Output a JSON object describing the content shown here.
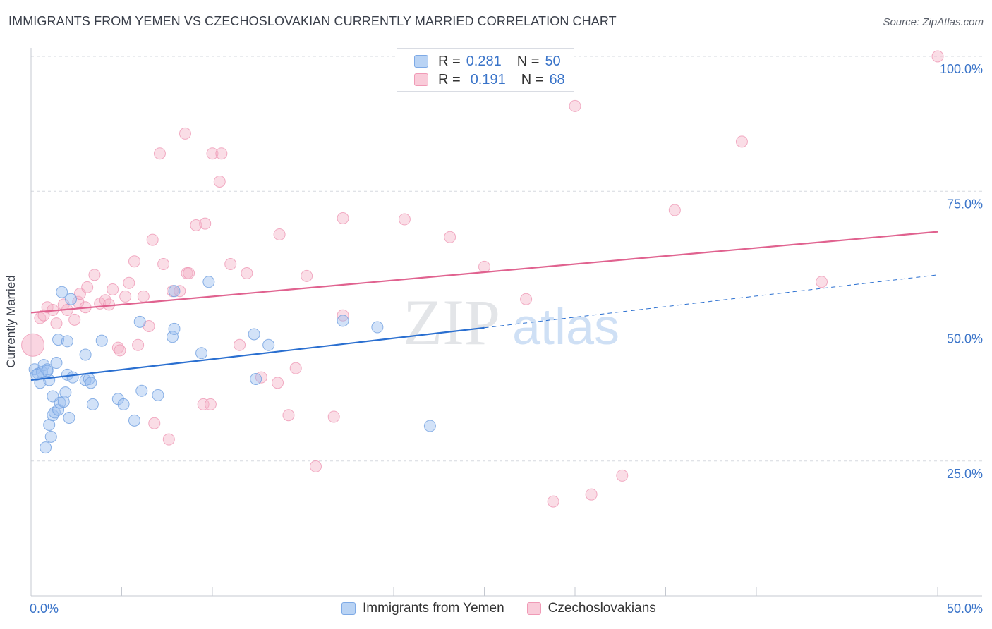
{
  "header": {
    "title": "IMMIGRANTS FROM YEMEN VS CZECHOSLOVAKIAN CURRENTLY MARRIED CORRELATION CHART",
    "source": "Source: ZipAtlas.com"
  },
  "legend": {
    "rows": [
      {
        "r_label": "R =",
        "r_value": "0.281",
        "n_label": "N =",
        "n_value": "50",
        "color": "#9bbfef"
      },
      {
        "r_label": "R =",
        "r_value": "0.191",
        "n_label": "N =",
        "n_value": "68",
        "color": "#f5b3c8"
      }
    ]
  },
  "bottom_legend": {
    "series_a": "Immigrants from Yemen",
    "series_b": "Czechoslovakians"
  },
  "watermark": {
    "zip": "ZIP",
    "atlas": "atlas"
  },
  "chart_data": {
    "type": "scatter",
    "title": "IMMIGRANTS FROM YEMEN VS CZECHOSLOVAKIAN CURRENTLY MARRIED CORRELATION CHART",
    "xlabel": "",
    "ylabel": "Currently Married",
    "xlim": [
      0,
      50
    ],
    "ylim": [
      0,
      100
    ],
    "x_tick_labels": [
      "0.0%",
      "50.0%"
    ],
    "y_tick_labels": [
      "25.0%",
      "50.0%",
      "75.0%",
      "100.0%"
    ],
    "y_ticks": [
      25,
      50,
      75,
      100
    ],
    "colors": {
      "yemen": "#9bbfef",
      "yemen_line": "#2a6fd0",
      "czech": "#f5b3c8",
      "czech_line": "#e0628f",
      "axis_text": "#3a74c9"
    },
    "series": [
      {
        "name": "Immigrants from Yemen",
        "r": 0.281,
        "n": 50,
        "trend": {
          "x0": 0,
          "y0": 40.0,
          "x1": 25,
          "y1": 49.7,
          "dash_to_x": 50,
          "dash_to_y": 59.5
        },
        "points": [
          [
            0.2,
            42.0
          ],
          [
            0.4,
            41.2
          ],
          [
            0.5,
            39.5
          ],
          [
            0.6,
            41.5
          ],
          [
            0.7,
            42.8
          ],
          [
            0.8,
            27.5
          ],
          [
            0.9,
            42.0
          ],
          [
            1.0,
            40.0
          ],
          [
            1.0,
            31.7
          ],
          [
            1.1,
            29.5
          ],
          [
            1.2,
            33.5
          ],
          [
            1.2,
            37.0
          ],
          [
            1.3,
            34.0
          ],
          [
            1.4,
            43.2
          ],
          [
            1.5,
            34.5
          ],
          [
            1.5,
            47.5
          ],
          [
            1.6,
            35.8
          ],
          [
            1.7,
            56.3
          ],
          [
            1.8,
            36.0
          ],
          [
            1.9,
            37.7
          ],
          [
            2.0,
            47.2
          ],
          [
            2.0,
            41.0
          ],
          [
            2.1,
            33.0
          ],
          [
            2.2,
            55.0
          ],
          [
            2.3,
            40.5
          ],
          [
            3.0,
            40.0
          ],
          [
            3.0,
            44.7
          ],
          [
            3.2,
            40.2
          ],
          [
            3.3,
            39.5
          ],
          [
            3.4,
            35.5
          ],
          [
            3.9,
            47.3
          ],
          [
            4.8,
            36.5
          ],
          [
            5.1,
            35.5
          ],
          [
            5.7,
            32.5
          ],
          [
            6.0,
            50.8
          ],
          [
            6.1,
            38.0
          ],
          [
            7.0,
            37.2
          ],
          [
            7.8,
            48.0
          ],
          [
            7.9,
            56.5
          ],
          [
            7.9,
            49.5
          ],
          [
            9.4,
            45.0
          ],
          [
            9.8,
            58.2
          ],
          [
            12.3,
            48.5
          ],
          [
            12.4,
            40.2
          ],
          [
            13.1,
            46.5
          ],
          [
            17.2,
            51.0
          ],
          [
            19.1,
            49.8
          ],
          [
            22.0,
            31.5
          ],
          [
            0.3,
            41.0
          ],
          [
            0.9,
            41.7
          ]
        ]
      },
      {
        "name": "Czechoslovakians",
        "r": 0.191,
        "n": 68,
        "trend": {
          "x0": 0,
          "y0": 52.5,
          "x1": 50,
          "y1": 67.5
        },
        "points": [
          [
            0.1,
            46.5
          ],
          [
            0.5,
            51.5
          ],
          [
            0.7,
            52.0
          ],
          [
            0.9,
            53.5
          ],
          [
            1.2,
            53.0
          ],
          [
            1.4,
            50.5
          ],
          [
            1.8,
            54.0
          ],
          [
            2.0,
            53.0
          ],
          [
            2.4,
            51.2
          ],
          [
            2.6,
            54.5
          ],
          [
            2.7,
            56.0
          ],
          [
            3.0,
            53.5
          ],
          [
            3.1,
            57.2
          ],
          [
            3.5,
            59.5
          ],
          [
            3.8,
            54.2
          ],
          [
            4.1,
            54.8
          ],
          [
            4.3,
            54.0
          ],
          [
            4.5,
            56.8
          ],
          [
            4.8,
            46.0
          ],
          [
            4.9,
            45.5
          ],
          [
            5.2,
            55.5
          ],
          [
            5.4,
            58.0
          ],
          [
            5.7,
            62.0
          ],
          [
            5.9,
            46.5
          ],
          [
            6.2,
            55.5
          ],
          [
            6.5,
            50.0
          ],
          [
            6.7,
            66.0
          ],
          [
            6.8,
            32.0
          ],
          [
            7.1,
            82.0
          ],
          [
            7.3,
            61.5
          ],
          [
            7.6,
            29.0
          ],
          [
            7.8,
            56.5
          ],
          [
            8.2,
            56.5
          ],
          [
            8.5,
            85.7
          ],
          [
            8.6,
            59.8
          ],
          [
            8.7,
            59.8
          ],
          [
            9.1,
            68.7
          ],
          [
            9.5,
            35.5
          ],
          [
            9.6,
            69.0
          ],
          [
            9.9,
            35.5
          ],
          [
            10.0,
            82.0
          ],
          [
            10.4,
            76.8
          ],
          [
            10.5,
            82.0
          ],
          [
            11.0,
            61.5
          ],
          [
            11.5,
            46.5
          ],
          [
            11.9,
            59.8
          ],
          [
            12.7,
            40.5
          ],
          [
            13.6,
            39.5
          ],
          [
            13.7,
            67.0
          ],
          [
            14.2,
            33.5
          ],
          [
            14.6,
            42.2
          ],
          [
            15.2,
            59.3
          ],
          [
            15.7,
            24.0
          ],
          [
            16.7,
            33.2
          ],
          [
            17.2,
            52.0
          ],
          [
            17.2,
            70.0
          ],
          [
            20.6,
            69.8
          ],
          [
            23.1,
            66.5
          ],
          [
            25.0,
            61.0
          ],
          [
            27.3,
            55.0
          ],
          [
            28.8,
            17.5
          ],
          [
            30.0,
            90.8
          ],
          [
            30.9,
            18.8
          ],
          [
            32.6,
            22.3
          ],
          [
            35.5,
            71.5
          ],
          [
            39.2,
            84.2
          ],
          [
            43.6,
            58.2
          ],
          [
            50.0,
            100.0
          ]
        ]
      }
    ]
  }
}
